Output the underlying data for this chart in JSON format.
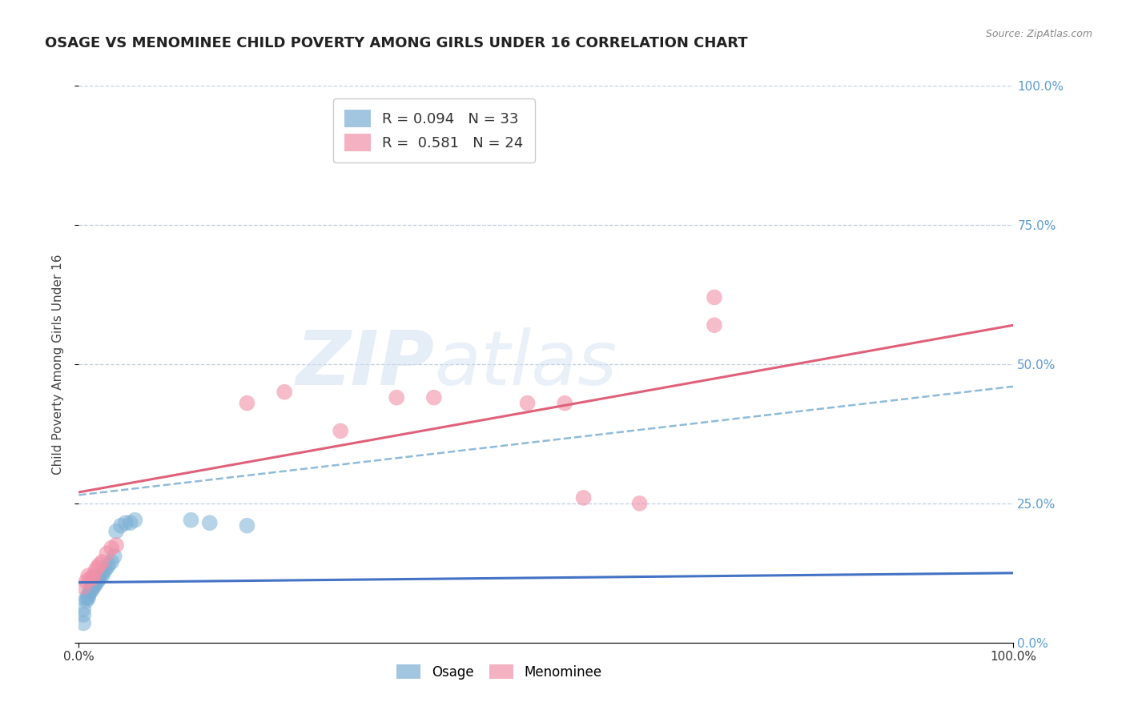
{
  "title": "OSAGE VS MENOMINEE CHILD POVERTY AMONG GIRLS UNDER 16 CORRELATION CHART",
  "source": "Source: ZipAtlas.com",
  "ylabel": "Child Poverty Among Girls Under 16",
  "xlim": [
    0,
    1
  ],
  "ylim": [
    0,
    1
  ],
  "ytick_positions": [
    0.0,
    0.25,
    0.5,
    0.75,
    1.0
  ],
  "watermark_text": "ZIP",
  "watermark_text2": "atlas",
  "osage_color": "#7bafd4",
  "osage_line_color": "#4472c4",
  "menominee_color": "#f090a8",
  "menominee_line_color": "#e0607a",
  "dashed_line_color": "#7bafd4",
  "background_color": "#ffffff",
  "grid_color": "#b0c4de",
  "right_tick_color": "#5b9bd5",
  "title_fontsize": 13,
  "axis_fontsize": 11,
  "tick_fontsize": 11,
  "osage_scatter_x": [
    0.005,
    0.005,
    0.005,
    0.008,
    0.008,
    0.01,
    0.01,
    0.012,
    0.012,
    0.014,
    0.014,
    0.016,
    0.016,
    0.018,
    0.018,
    0.02,
    0.02,
    0.022,
    0.025,
    0.025,
    0.028,
    0.03,
    0.032,
    0.035,
    0.038,
    0.04,
    0.045,
    0.05,
    0.055,
    0.06,
    0.12,
    0.14,
    0.18
  ],
  "osage_scatter_y": [
    0.035,
    0.05,
    0.06,
    0.075,
    0.08,
    0.08,
    0.085,
    0.09,
    0.095,
    0.095,
    0.1,
    0.1,
    0.105,
    0.105,
    0.11,
    0.11,
    0.115,
    0.115,
    0.12,
    0.125,
    0.13,
    0.135,
    0.14,
    0.145,
    0.155,
    0.2,
    0.21,
    0.215,
    0.215,
    0.22,
    0.22,
    0.215,
    0.21
  ],
  "menominee_scatter_x": [
    0.005,
    0.008,
    0.01,
    0.012,
    0.014,
    0.016,
    0.018,
    0.02,
    0.022,
    0.025,
    0.03,
    0.035,
    0.04,
    0.18,
    0.22,
    0.28,
    0.34,
    0.38,
    0.48,
    0.52,
    0.54,
    0.68,
    0.68,
    0.6
  ],
  "menominee_scatter_y": [
    0.1,
    0.11,
    0.12,
    0.115,
    0.115,
    0.12,
    0.13,
    0.135,
    0.14,
    0.145,
    0.16,
    0.17,
    0.175,
    0.43,
    0.45,
    0.38,
    0.44,
    0.44,
    0.43,
    0.43,
    0.26,
    0.62,
    0.57,
    0.25
  ],
  "osage_trend": [
    0.11,
    0.12
  ],
  "osage_trend_x": [
    0.0,
    1.0
  ],
  "menominee_trend_start_y": 0.27,
  "menominee_trend_end_y": 0.57,
  "dashed_trend_start_y": 0.265,
  "dashed_trend_end_y": 0.46
}
